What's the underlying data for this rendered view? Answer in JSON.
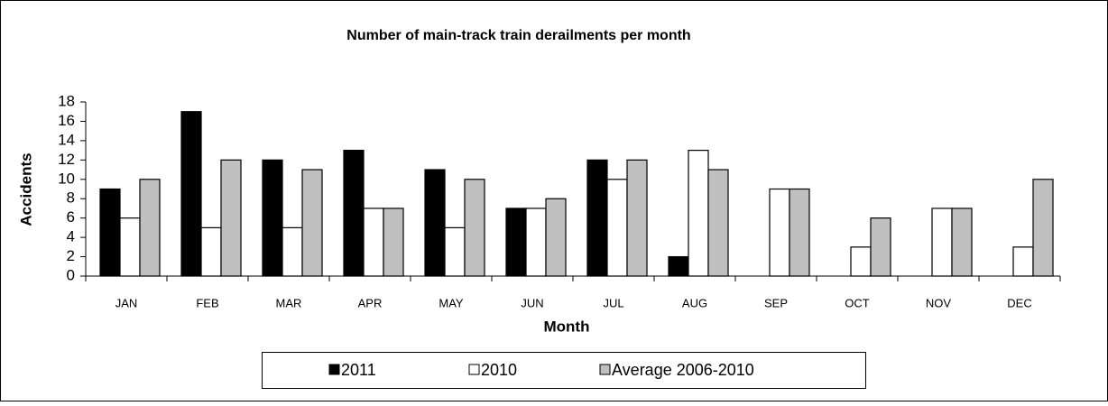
{
  "chart_data": {
    "type": "bar",
    "title": "Number of main-track train derailments per month",
    "x_label": "Month",
    "y_label": "Accidents",
    "categories": [
      "JAN",
      "FEB",
      "MAR",
      "APR",
      "MAY",
      "JUN",
      "JUL",
      "AUG",
      "SEP",
      "OCT",
      "NOV",
      "DEC"
    ],
    "series": [
      {
        "name": "2011",
        "color": "#000000",
        "values": [
          9,
          17,
          12,
          13,
          11,
          7,
          12,
          2,
          null,
          null,
          null,
          null
        ]
      },
      {
        "name": "2010",
        "color": "#ffffff",
        "values": [
          6,
          5,
          5,
          7,
          5,
          7,
          10,
          13,
          9,
          3,
          7,
          3
        ]
      },
      {
        "name": "Average 2006-2010",
        "color": "#c0c0c0",
        "values": [
          10,
          12,
          11,
          7,
          10,
          8,
          12,
          11,
          9,
          6,
          7,
          10
        ]
      }
    ],
    "ylim": [
      0,
      18
    ],
    "yticks": [
      0,
      2,
      4,
      6,
      8,
      10,
      12,
      14,
      16,
      18
    ],
    "grid": false,
    "legend": "bottom"
  }
}
